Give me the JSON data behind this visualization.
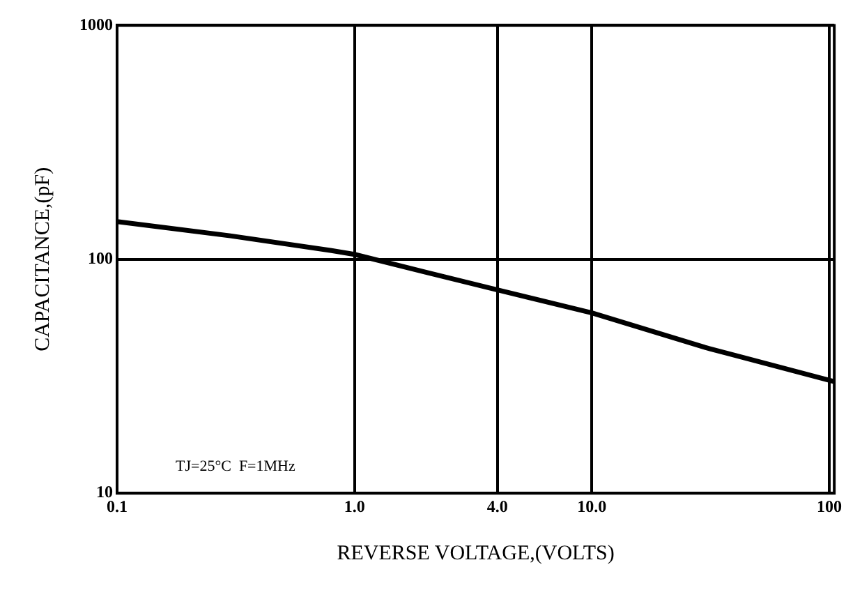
{
  "chart_data": {
    "type": "line",
    "xlabel": "REVERSE VOLTAGE,(VOLTS)",
    "ylabel": "CAPACITANCE,(pF)",
    "annotations": [
      "TJ=25°C  F=1MHz"
    ],
    "log": "xy",
    "grid": true,
    "legend": false,
    "marker": "none",
    "line_style": "solid",
    "xlim": [
      0.1,
      105
    ],
    "ylim": [
      10,
      1000
    ],
    "xticks": [
      0.1,
      {
        "value": 1,
        "label": "1.0"
      },
      {
        "value": 4,
        "label": "4.0"
      },
      {
        "value": 10,
        "label": "10.0"
      },
      100
    ],
    "yticks": [
      10,
      100,
      1000
    ],
    "series": [
      {
        "color": "#000000",
        "x": [
          0.1,
          0.3,
          0.8,
          1,
          2,
          4,
          10,
          30,
          105
        ],
        "values": [
          145,
          126,
          109,
          105,
          88,
          74,
          59,
          42,
          30
        ]
      }
    ]
  }
}
